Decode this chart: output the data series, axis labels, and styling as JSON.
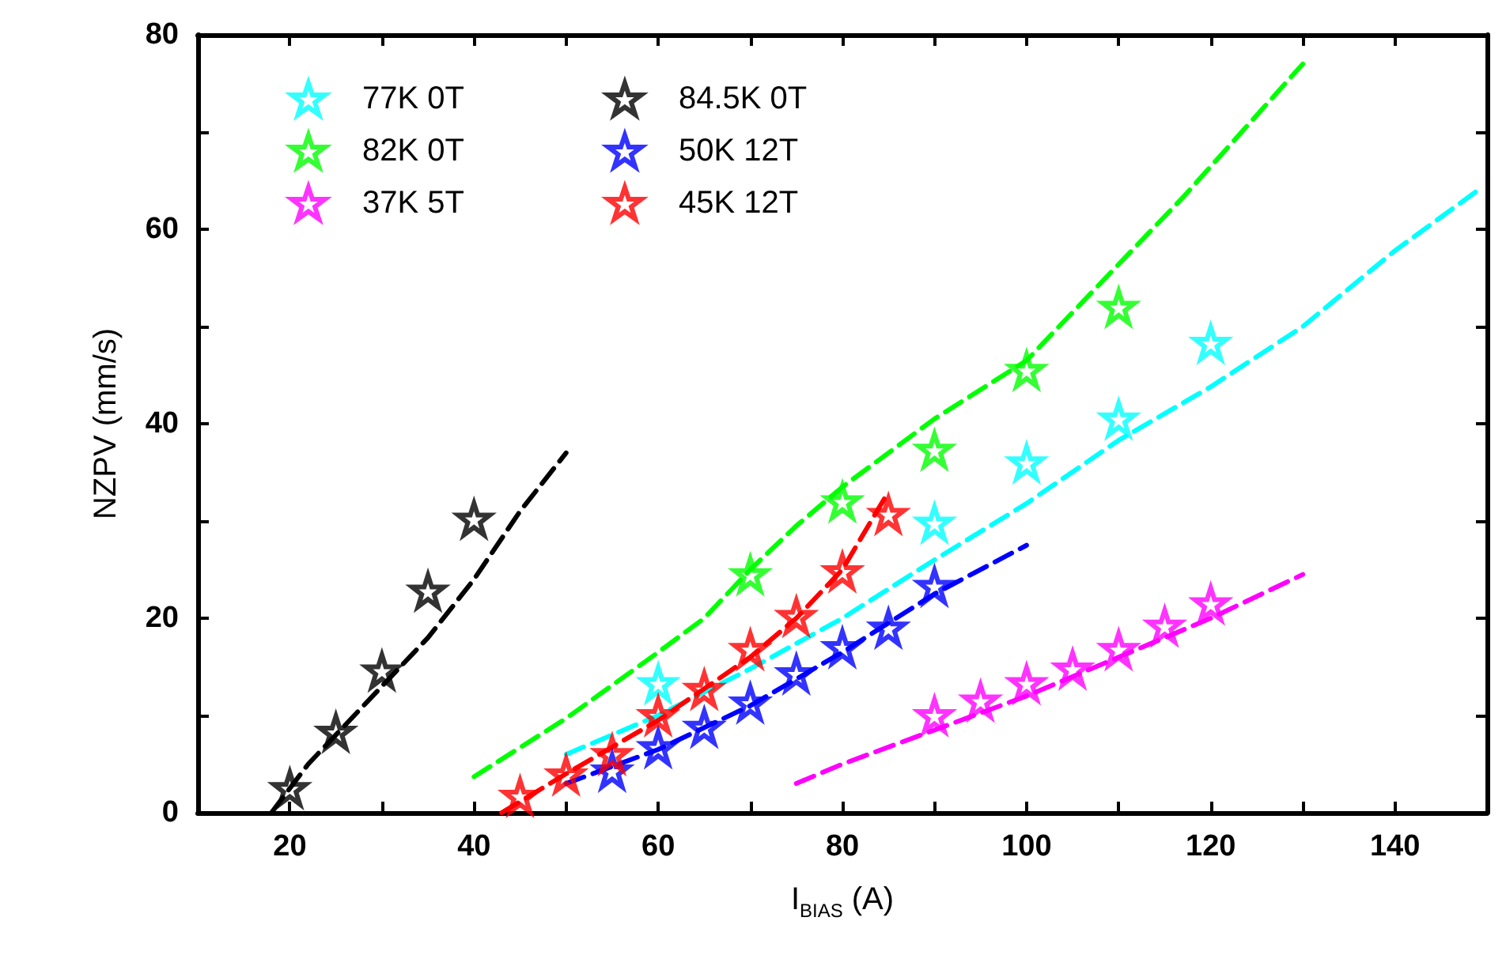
{
  "chart_data": {
    "type": "scatter",
    "xlabel": "I$_{BIAS}$ (A)",
    "ylabel": "NZPV (mm/s)",
    "xlim": [
      10,
      150
    ],
    "ylim": [
      0,
      80
    ],
    "xticks": [
      20,
      {
        "value": 30,
        "label": null
      },
      40,
      {
        "value": 50,
        "label": null
      },
      60,
      {
        "value": 70,
        "label": null
      },
      80,
      {
        "value": 90,
        "label": null
      },
      100,
      {
        "value": 110,
        "label": null
      },
      120,
      {
        "value": 130,
        "label": null
      },
      140
    ],
    "yticks": [
      0,
      {
        "value": 10,
        "label": null
      },
      20,
      {
        "value": 30,
        "label": null
      },
      40,
      {
        "value": 50,
        "label": null
      },
      60,
      {
        "value": 70,
        "label": null
      },
      80
    ],
    "grid": false,
    "legend": "top left",
    "marker": "star",
    "line_style": "dashed",
    "series": [
      {
        "name": "77K 0T",
        "color": "#00ffff",
        "x": [
          60,
          90,
          100,
          110,
          120
        ],
        "values": [
          13.3,
          29.8,
          36,
          40.5,
          48.3
        ]
      },
      {
        "name": "82K 0T",
        "color": "#00ff00",
        "x": [
          70,
          80,
          90,
          100,
          110
        ],
        "values": [
          24.5,
          32,
          37.3,
          45.5,
          52
        ]
      },
      {
        "name": "37K 5T",
        "color": "#ff00ff",
        "x": [
          90,
          95,
          100,
          105,
          110,
          115,
          120
        ],
        "values": [
          10,
          11.5,
          13.3,
          14.8,
          16.8,
          19.2,
          21.5
        ]
      },
      {
        "name": "84.5K 0T",
        "color": "#000000",
        "x": [
          20,
          25,
          30,
          35,
          40
        ],
        "values": [
          2.5,
          8.3,
          14.6,
          22.8,
          30.2
        ]
      },
      {
        "name": "50K 12T",
        "color": "#0000ff",
        "x": [
          55,
          60,
          65,
          70,
          75,
          80,
          85,
          90
        ],
        "values": [
          4.3,
          6.7,
          8.8,
          11.3,
          14.3,
          17,
          19,
          23.3
        ]
      },
      {
        "name": "45K 12T",
        "color": "#ff0000",
        "x": [
          45,
          50,
          55,
          60,
          65,
          70,
          75,
          80,
          85
        ],
        "values": [
          1.7,
          3.9,
          6,
          10,
          12.7,
          16.8,
          20.2,
          24.8,
          30.7
        ]
      },
      {
        "color": "#00ffff",
        "type": "line",
        "marker": "none",
        "x": [
          50,
          60,
          70,
          80,
          90,
          100,
          110,
          120,
          130,
          140,
          149
        ],
        "values": [
          6,
          10,
          14.8,
          20,
          26,
          31.8,
          38.3,
          43.8,
          50,
          57.8,
          64
        ]
      },
      {
        "color": "#00ff00",
        "type": "line",
        "marker": "none",
        "x": [
          40,
          50,
          60,
          65,
          70,
          75,
          80,
          90,
          100,
          110,
          117,
          130
        ],
        "values": [
          3.7,
          9.7,
          16.5,
          20,
          25,
          29.5,
          33.5,
          40.5,
          46.5,
          56.4,
          63.3,
          77
        ]
      },
      {
        "color": "#ff00ff",
        "type": "line",
        "marker": "none",
        "x": [
          75,
          80,
          90,
          100,
          110,
          120,
          130
        ],
        "values": [
          3,
          5,
          8.5,
          12,
          16,
          20,
          24.5
        ]
      },
      {
        "color": "#000000",
        "type": "line",
        "marker": "none",
        "x": [
          18,
          22,
          26,
          30,
          35,
          40,
          45,
          50
        ],
        "values": [
          0,
          5,
          9,
          13,
          18,
          24,
          31,
          37
        ]
      },
      {
        "color": "#0000ff",
        "type": "line",
        "marker": "none",
        "x": [
          50,
          60,
          70,
          80,
          90,
          100
        ],
        "values": [
          3,
          6.5,
          11,
          16.5,
          22.5,
          27.5
        ]
      },
      {
        "color": "#ff0000",
        "type": "line",
        "marker": "none",
        "x": [
          43,
          50,
          60,
          70,
          75,
          80,
          85
        ],
        "values": [
          0,
          4,
          9.5,
          16,
          20,
          25,
          33
        ]
      }
    ]
  }
}
